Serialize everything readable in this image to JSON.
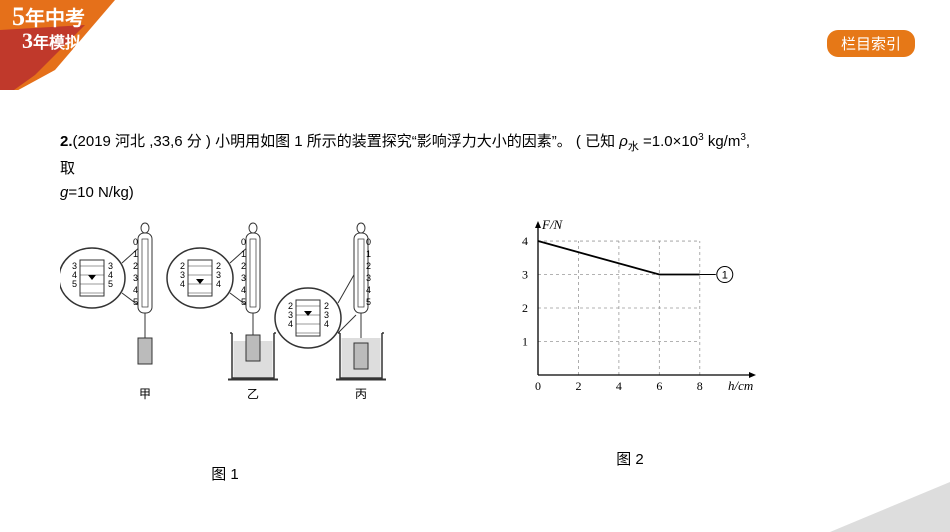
{
  "badge": {
    "text": "栏目索引",
    "bg": "#e67817"
  },
  "logo": {
    "top_text": "5年中考",
    "bottom_text": "3年模拟",
    "orange": "#e5701a",
    "red": "#c0392b"
  },
  "question": {
    "number": "2.",
    "source": "(2019 河北 ,33,6 分 )",
    "body1": " 小明用如图 1 所示的装置探究“影响浮力大小的因素”。 ( 已知 ",
    "rho_sym": "ρ",
    "rho_sub": "水",
    "rho_eq": " =1.0×10",
    "rho_exp": "3",
    "rho_unit": " kg/m",
    "rho_unit_exp": "3",
    "comma": ",",
    "body2": "取",
    "g_line": "g=10 N/kg)"
  },
  "fig1": {
    "label": "图 1",
    "devices": [
      {
        "name": "甲",
        "has_beaker": false,
        "reading_y": 70
      },
      {
        "name": "乙",
        "has_beaker": true,
        "reading_y": 56
      },
      {
        "name": "丙",
        "has_beaker": true,
        "reading_y": 44
      }
    ],
    "zoom_ticks": [
      "2",
      "3",
      "4",
      "5"
    ],
    "mini_ticks": [
      "0",
      "1",
      "2",
      "3",
      "4",
      "5"
    ],
    "scale_body_fill": "#ffffff",
    "scale_stroke": "#333333",
    "beaker_stroke": "#333333",
    "beaker_water": "#dddddd",
    "weight_fill": "#bbbbbb"
  },
  "fig2": {
    "type": "line",
    "label": "图 2",
    "y_axis": "F/N",
    "x_axis": "h/cm",
    "xticks": [
      "0",
      "2",
      "4",
      "6",
      "8"
    ],
    "yticks": [
      "1",
      "2",
      "3",
      "4"
    ],
    "xlim": [
      0,
      9
    ],
    "ylim": [
      0,
      4.3
    ],
    "points": [
      [
        0,
        4
      ],
      [
        6,
        3
      ],
      [
        8,
        3
      ]
    ],
    "annotation": "①",
    "annotation_at": [
      8,
      3
    ],
    "bg": "#ffffff",
    "grid_color": "#999999",
    "axis_color": "#000000",
    "line_color": "#000000"
  }
}
